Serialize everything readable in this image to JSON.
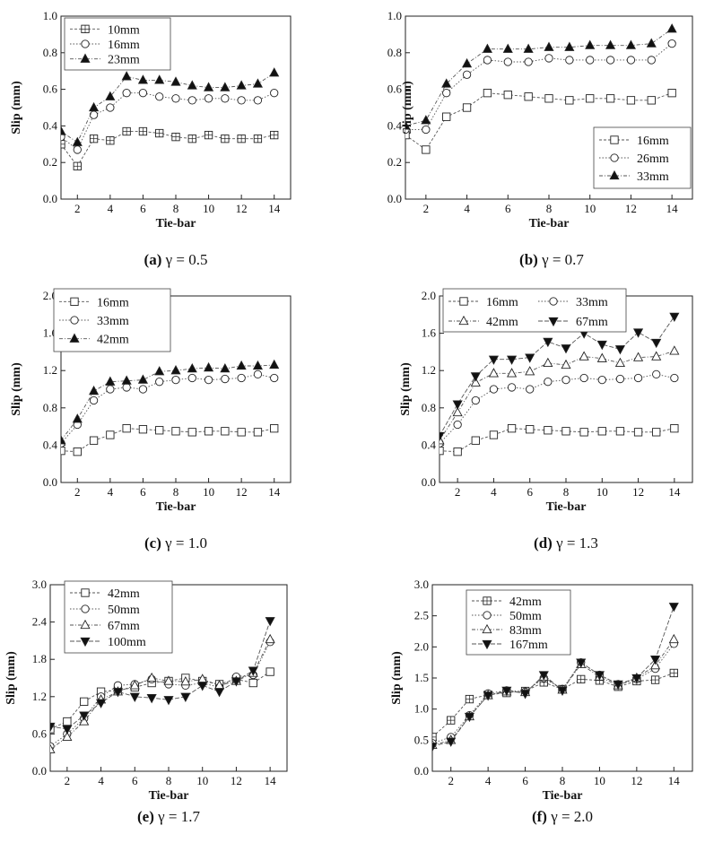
{
  "chart_data": [
    {
      "type": "line",
      "caption": {
        "letter": "(a)",
        "text": " γ = 0.5"
      },
      "xlabel": "Tie-bar",
      "ylabel": "Slip (mm)",
      "xlim": [
        1,
        15
      ],
      "xticks": [
        2,
        4,
        6,
        8,
        10,
        12,
        14
      ],
      "ylim": [
        0,
        1.0
      ],
      "yticks": [
        "0.0",
        "0.2",
        "0.4",
        "0.6",
        "0.8",
        "1.0"
      ],
      "legend": "top-left",
      "x": [
        1,
        2,
        3,
        4,
        5,
        6,
        7,
        8,
        9,
        10,
        11,
        12,
        13,
        14
      ],
      "series": [
        {
          "name": "10mm",
          "marker": "square-cross",
          "values": [
            0.3,
            0.18,
            0.33,
            0.32,
            0.37,
            0.37,
            0.36,
            0.34,
            0.33,
            0.35,
            0.33,
            0.33,
            0.33,
            0.35
          ]
        },
        {
          "name": "16mm",
          "marker": "circle",
          "values": [
            0.34,
            0.27,
            0.46,
            0.5,
            0.58,
            0.58,
            0.56,
            0.55,
            0.54,
            0.55,
            0.55,
            0.54,
            0.54,
            0.58
          ]
        },
        {
          "name": "23mm",
          "marker": "triangle-filled",
          "values": [
            0.37,
            0.31,
            0.5,
            0.56,
            0.67,
            0.65,
            0.65,
            0.64,
            0.62,
            0.61,
            0.61,
            0.62,
            0.63,
            0.69
          ]
        }
      ]
    },
    {
      "type": "line",
      "caption": {
        "letter": "(b)",
        "text": " γ = 0.7"
      },
      "xlabel": "Tie-bar",
      "ylabel": "Slip (mm)",
      "xlim": [
        1,
        15
      ],
      "xticks": [
        2,
        4,
        6,
        8,
        10,
        12,
        14
      ],
      "ylim": [
        0,
        1.0
      ],
      "yticks": [
        "0.0",
        "0.2",
        "0.4",
        "0.6",
        "0.8",
        "1.0"
      ],
      "legend": "bottom-right",
      "x": [
        1,
        2,
        3,
        4,
        5,
        6,
        7,
        8,
        9,
        10,
        11,
        12,
        13,
        14
      ],
      "series": [
        {
          "name": "16mm",
          "marker": "square",
          "values": [
            0.35,
            0.27,
            0.45,
            0.5,
            0.58,
            0.57,
            0.56,
            0.55,
            0.54,
            0.55,
            0.55,
            0.54,
            0.54,
            0.58
          ]
        },
        {
          "name": "26mm",
          "marker": "circle",
          "values": [
            0.38,
            0.38,
            0.58,
            0.68,
            0.76,
            0.75,
            0.75,
            0.77,
            0.76,
            0.76,
            0.76,
            0.76,
            0.76,
            0.85
          ]
        },
        {
          "name": "33mm",
          "marker": "triangle-filled",
          "values": [
            0.4,
            0.43,
            0.63,
            0.74,
            0.82,
            0.82,
            0.82,
            0.83,
            0.83,
            0.84,
            0.84,
            0.84,
            0.85,
            0.93
          ]
        }
      ]
    },
    {
      "type": "line",
      "caption": {
        "letter": "(c)",
        "text": " γ = 1.0"
      },
      "xlabel": "Tie-bar",
      "ylabel": "Slip (mm)",
      "xlim": [
        1,
        15
      ],
      "xticks": [
        2,
        4,
        6,
        8,
        10,
        12,
        14
      ],
      "ylim": [
        0,
        2.0
      ],
      "yticks": [
        "0.0",
        "0.4",
        "0.8",
        "1.2",
        "1.6",
        "2.0"
      ],
      "legend": "top-left",
      "x": [
        1,
        2,
        3,
        4,
        5,
        6,
        7,
        8,
        9,
        10,
        11,
        12,
        13,
        14
      ],
      "series": [
        {
          "name": "16mm",
          "marker": "square",
          "values": [
            0.34,
            0.33,
            0.45,
            0.51,
            0.58,
            0.57,
            0.56,
            0.55,
            0.54,
            0.55,
            0.55,
            0.54,
            0.54,
            0.58
          ]
        },
        {
          "name": "33mm",
          "marker": "circle",
          "values": [
            0.42,
            0.62,
            0.88,
            1.0,
            1.02,
            1.0,
            1.08,
            1.1,
            1.12,
            1.1,
            1.11,
            1.12,
            1.16,
            1.12
          ]
        },
        {
          "name": "42mm",
          "marker": "triangle-filled",
          "values": [
            0.45,
            0.68,
            0.98,
            1.08,
            1.09,
            1.1,
            1.19,
            1.2,
            1.22,
            1.23,
            1.22,
            1.25,
            1.25,
            1.26
          ]
        }
      ]
    },
    {
      "type": "line",
      "caption": {
        "letter": "(d)",
        "text": " γ = 1.3"
      },
      "xlabel": "Tie-bar",
      "ylabel": "Slip (mm)",
      "xlim": [
        1,
        15
      ],
      "xticks": [
        2,
        4,
        6,
        8,
        10,
        12,
        14
      ],
      "ylim": [
        0,
        2.0
      ],
      "yticks": [
        "0.0",
        "0.4",
        "0.8",
        "1.2",
        "1.6",
        "2.0"
      ],
      "legend": "top-left",
      "x": [
        1,
        2,
        3,
        4,
        5,
        6,
        7,
        8,
        9,
        10,
        11,
        12,
        13,
        14
      ],
      "series": [
        {
          "name": "16mm",
          "marker": "square",
          "values": [
            0.34,
            0.33,
            0.45,
            0.51,
            0.58,
            0.57,
            0.56,
            0.55,
            0.54,
            0.55,
            0.55,
            0.54,
            0.54,
            0.58
          ]
        },
        {
          "name": "33mm",
          "marker": "circle",
          "values": [
            0.42,
            0.62,
            0.88,
            1.0,
            1.02,
            1.0,
            1.08,
            1.1,
            1.12,
            1.1,
            1.11,
            1.12,
            1.16,
            1.12
          ]
        },
        {
          "name": "42mm",
          "marker": "triangle",
          "values": [
            0.45,
            0.75,
            1.07,
            1.17,
            1.17,
            1.19,
            1.28,
            1.26,
            1.35,
            1.33,
            1.28,
            1.34,
            1.35,
            1.41
          ]
        },
        {
          "name": "67mm",
          "marker": "triangle-down-filled",
          "values": [
            0.5,
            0.84,
            1.14,
            1.32,
            1.32,
            1.34,
            1.51,
            1.44,
            1.6,
            1.48,
            1.43,
            1.61,
            1.5,
            1.78
          ]
        }
      ]
    },
    {
      "type": "line",
      "caption": {
        "letter": "(e)",
        "text": " γ = 1.7"
      },
      "xlabel": "Tie-bar",
      "ylabel": "Slip (mm)",
      "xlim": [
        1,
        15
      ],
      "xticks": [
        2,
        4,
        6,
        8,
        10,
        12,
        14
      ],
      "ylim": [
        0,
        3.0
      ],
      "yticks": [
        "0.0",
        "0.6",
        "1.2",
        "1.8",
        "2.4",
        "3.0"
      ],
      "legend": "top-left",
      "x": [
        1,
        2,
        3,
        4,
        5,
        6,
        7,
        8,
        9,
        10,
        11,
        12,
        13,
        14
      ],
      "series": [
        {
          "name": "42mm",
          "marker": "square",
          "values": [
            0.68,
            0.8,
            1.12,
            1.28,
            1.3,
            1.35,
            1.42,
            1.45,
            1.5,
            1.45,
            1.4,
            1.48,
            1.42,
            1.6
          ]
        },
        {
          "name": "50mm",
          "marker": "circle",
          "values": [
            0.4,
            0.6,
            0.85,
            1.2,
            1.38,
            1.4,
            1.48,
            1.4,
            1.38,
            1.42,
            1.35,
            1.52,
            1.55,
            2.08
          ]
        },
        {
          "name": "67mm",
          "marker": "triangle",
          "values": [
            0.35,
            0.55,
            0.8,
            1.15,
            1.28,
            1.38,
            1.5,
            1.45,
            1.44,
            1.48,
            1.38,
            1.45,
            1.58,
            2.12
          ]
        },
        {
          "name": "100mm",
          "marker": "triangle-down-filled",
          "values": [
            0.72,
            0.68,
            0.9,
            1.1,
            1.28,
            1.2,
            1.18,
            1.15,
            1.2,
            1.38,
            1.28,
            1.45,
            1.62,
            2.42
          ]
        }
      ]
    },
    {
      "type": "line",
      "caption": {
        "letter": "(f)",
        "text": " γ = 2.0"
      },
      "xlabel": "Tie-bar",
      "ylabel": "Slip (mm)",
      "xlim": [
        1,
        15
      ],
      "xticks": [
        2,
        4,
        6,
        8,
        10,
        12,
        14
      ],
      "ylim": [
        0,
        3.0
      ],
      "yticks": [
        "0.0",
        "0.5",
        "1.0",
        "1.5",
        "2.0",
        "2.5",
        "3.0"
      ],
      "legend": "top-left",
      "x": [
        1,
        2,
        3,
        4,
        5,
        6,
        7,
        8,
        9,
        10,
        11,
        12,
        13,
        14
      ],
      "series": [
        {
          "name": "42mm",
          "marker": "square-cross",
          "values": [
            0.55,
            0.82,
            1.16,
            1.23,
            1.26,
            1.29,
            1.43,
            1.32,
            1.48,
            1.46,
            1.36,
            1.45,
            1.47,
            1.58
          ]
        },
        {
          "name": "50mm",
          "marker": "circle",
          "values": [
            0.45,
            0.55,
            0.9,
            1.25,
            1.3,
            1.28,
            1.5,
            1.32,
            1.75,
            1.55,
            1.4,
            1.48,
            1.65,
            2.05
          ]
        },
        {
          "name": "83mm",
          "marker": "triangle",
          "values": [
            0.42,
            0.5,
            0.88,
            1.22,
            1.28,
            1.27,
            1.52,
            1.31,
            1.72,
            1.52,
            1.38,
            1.5,
            1.7,
            2.12
          ]
        },
        {
          "name": "167mm",
          "marker": "triangle-down-filled",
          "values": [
            0.4,
            0.48,
            0.88,
            1.22,
            1.3,
            1.25,
            1.55,
            1.3,
            1.75,
            1.55,
            1.4,
            1.5,
            1.8,
            2.65
          ]
        }
      ]
    }
  ]
}
